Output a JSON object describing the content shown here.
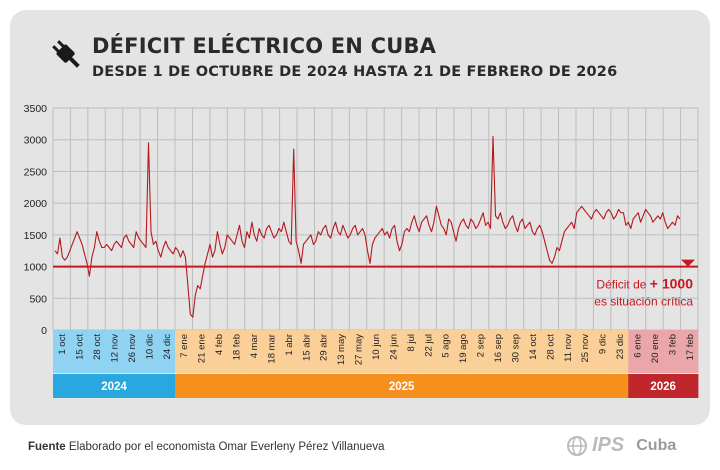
{
  "header": {
    "title": "DÉFICIT ELÉCTRICO EN CUBA",
    "subtitle": "DESDE 1 DE OCTUBRE DE 2024 HASTA 21 DE FEBRERO DE 2026"
  },
  "annotation": {
    "line1_prefix": "Déficit de ",
    "line1_value": "+ 1000",
    "line2": "es situación crítica"
  },
  "footer": {
    "label": "Fuente",
    "text": " Elaborado por el economista Omar Everleny Pérez Villanueva"
  },
  "logo": {
    "name": "IPS",
    "suffix": "Cuba"
  },
  "chart_data": {
    "type": "line",
    "title": "DÉFICIT ELÉCTRICO EN CUBA",
    "subtitle": "DESDE 1 DE OCTUBRE DE 2024 HASTA 21 DE FEBRERO DE 2026",
    "ylim": [
      0,
      3500
    ],
    "yticks": [
      0,
      500,
      1000,
      1500,
      2000,
      2500,
      3000,
      3500
    ],
    "grid": true,
    "threshold": 1000,
    "colors": {
      "line": "#b5191e",
      "threshold": "#c8171f",
      "year2024": "#29a8e0",
      "year2025": "#f5901e",
      "year2026": "#c0272d"
    },
    "xtick_labels": [
      "1 oct",
      "15 oct",
      "28 oct",
      "12 nov",
      "26 nov",
      "10 dic",
      "24 dic",
      "7 ene",
      "21 ene",
      "4 feb",
      "18 feb",
      "4 mar",
      "18 mar",
      "1 abr",
      "15 abr",
      "29 abr",
      "13 may",
      "27 may",
      "10 jun",
      "24 jun",
      "8 jul",
      "22 jul",
      "5 ago",
      "19 ago",
      "2 sep",
      "16 sep",
      "30 sep",
      "14 oct",
      "28 oct",
      "11 nov",
      "25 nov",
      "9 dic",
      "23 dic",
      "6 ene",
      "20 ene",
      "3 feb",
      "17 feb"
    ],
    "xtick_years": [
      "2024",
      "2024",
      "2024",
      "2024",
      "2024",
      "2024",
      "2024",
      "2025",
      "2025",
      "2025",
      "2025",
      "2025",
      "2025",
      "2025",
      "2025",
      "2025",
      "2025",
      "2025",
      "2025",
      "2025",
      "2025",
      "2025",
      "2025",
      "2025",
      "2025",
      "2025",
      "2025",
      "2025",
      "2025",
      "2025",
      "2025",
      "2025",
      "2025",
      "2026",
      "2026",
      "2026",
      "2026"
    ],
    "years": [
      {
        "label": "2024",
        "ticks": 7
      },
      {
        "label": "2025",
        "ticks": 26
      },
      {
        "label": "2026",
        "ticks": 4
      }
    ],
    "series": [
      {
        "values": [
          [
            1250,
            1200,
            1450,
            1150,
            1100,
            1150,
            1250,
            1350,
            1450,
            1550,
            1450,
            1350,
            1200,
            1050,
            850,
            1150,
            1300,
            1550,
            1400,
            1300,
            1300,
            1350,
            1300,
            1250,
            1350,
            1400,
            1350,
            1300,
            1450,
            1500,
            1400,
            1350,
            1300,
            1550,
            1450,
            1400,
            1350,
            1300,
            2950,
            1550,
            1350,
            1400,
            1250,
            1150,
            1300,
            1400,
            1300,
            1250,
            1200,
            1300,
            1250,
            1150,
            1250
          ],
          [
            1150,
            700,
            250,
            200,
            550,
            700,
            650,
            850,
            1050,
            1200,
            1350,
            1150,
            1250,
            1550,
            1350,
            1200,
            1300,
            1500,
            1450,
            1400,
            1350,
            1500,
            1650,
            1400,
            1300,
            1550,
            1450,
            1700,
            1500,
            1400,
            1600,
            1500,
            1450,
            1600,
            1650,
            1550,
            1450,
            1500,
            1600,
            1550,
            1700,
            1550,
            1400,
            1350,
            2850,
            1400,
            1250,
            1050,
            1350,
            1400,
            1450,
            1500,
            1350,
            1400,
            1550,
            1500,
            1600,
            1650,
            1500,
            1450,
            1600,
            1700,
            1550,
            1500,
            1650,
            1550,
            1450,
            1500,
            1600,
            1650,
            1500,
            1550,
            1600,
            1500,
            1250,
            1050,
            1350,
            1450,
            1500,
            1550,
            1600,
            1500,
            1550,
            1450,
            1600,
            1650,
            1400,
            1250,
            1350,
            1550,
            1600,
            1550,
            1700,
            1800,
            1650,
            1550,
            1700,
            1750,
            1800,
            1650,
            1550,
            1700,
            1950,
            1800,
            1650,
            1600,
            1500,
            1750,
            1700,
            1550,
            1400,
            1600,
            1700,
            1750,
            1650,
            1600,
            1750,
            1700,
            1600,
            1650,
            1750,
            1850,
            1650,
            1700,
            1600,
            3050,
            1800,
            1750,
            1850,
            1700,
            1600,
            1650,
            1750,
            1800,
            1650,
            1550,
            1700,
            1750,
            1600,
            1650,
            1700,
            1550,
            1500,
            1600,
            1650,
            1550,
            1400,
            1250,
            1100,
            1050,
            1150,
            1300,
            1250,
            1400,
            1550,
            1600,
            1650,
            1700,
            1600,
            1850,
            1900,
            1950,
            1900,
            1850,
            1800,
            1750,
            1850,
            1900,
            1850,
            1800,
            1750,
            1850,
            1900,
            1850,
            1750,
            1800,
            1900,
            1850,
            1850
          ]
        ],
        "values_2026": [
          1650,
          1700,
          1600,
          1750,
          1800,
          1850,
          1700,
          1800,
          1900,
          1850,
          1800,
          1700,
          1750,
          1800,
          1750,
          1850,
          1700,
          1600,
          1650,
          1700,
          1650,
          1800,
          1750
        ]
      }
    ]
  }
}
